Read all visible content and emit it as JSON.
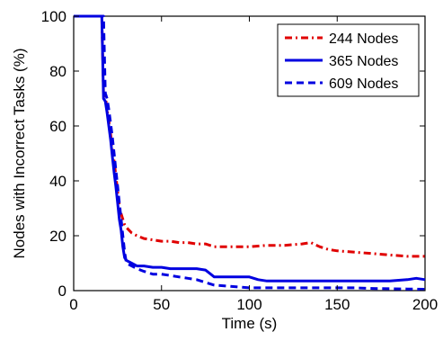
{
  "chart_data": {
    "type": "line",
    "xlabel": "Time (s)",
    "ylabel": "Nodes with Incorrect Tasks (%)",
    "xlim": [
      0,
      200
    ],
    "ylim": [
      0,
      100
    ],
    "xticks": [
      0,
      50,
      100,
      150,
      200
    ],
    "yticks": [
      0,
      20,
      40,
      60,
      80,
      100
    ],
    "grid": false,
    "legend_position": "top-right",
    "series": [
      {
        "name": "244 Nodes",
        "color": "#e00000",
        "style": "dashdot",
        "x": [
          0,
          16,
          17,
          18,
          19,
          20,
          21,
          22,
          23,
          24,
          25,
          26,
          27,
          28,
          29,
          30,
          33,
          36,
          40,
          45,
          50,
          55,
          60,
          65,
          70,
          75,
          80,
          90,
          100,
          110,
          120,
          130,
          135,
          140,
          145,
          150,
          160,
          170,
          180,
          190,
          200
        ],
        "y": [
          100,
          100,
          72,
          71,
          66,
          62,
          57,
          52,
          47,
          42,
          36,
          31,
          28,
          26,
          24,
          23,
          21,
          20,
          19,
          18.5,
          18,
          18,
          17.5,
          17.5,
          17,
          17,
          16,
          16,
          16,
          16.5,
          16.5,
          17,
          17.5,
          16,
          15,
          14.5,
          14,
          13.5,
          13,
          12.5,
          12.5
        ]
      },
      {
        "name": "365 Nodes",
        "color": "#0000e0",
        "style": "solid",
        "x": [
          0,
          16,
          17,
          18,
          19,
          20,
          21,
          22,
          23,
          24,
          25,
          26,
          27,
          28,
          29,
          30,
          33,
          36,
          40,
          45,
          50,
          55,
          60,
          65,
          70,
          75,
          78,
          80,
          90,
          100,
          105,
          110,
          120,
          130,
          140,
          150,
          160,
          170,
          180,
          190,
          195,
          200
        ],
        "y": [
          100,
          100,
          70,
          69,
          65,
          60,
          55,
          49,
          43,
          38,
          32,
          26,
          22,
          16,
          12,
          11,
          10,
          9,
          9,
          8.5,
          8.5,
          8,
          8,
          8,
          8,
          7.5,
          6,
          5,
          5,
          5,
          4,
          3.5,
          3.5,
          3.5,
          3.5,
          3.5,
          3.5,
          3.5,
          3.5,
          4,
          4.5,
          4
        ]
      },
      {
        "name": "609 Nodes",
        "color": "#0000e0",
        "style": "dashed",
        "x": [
          0,
          17,
          18,
          19,
          20,
          21,
          22,
          23,
          24,
          25,
          26,
          27,
          28,
          29,
          30,
          33,
          36,
          40,
          45,
          50,
          55,
          60,
          65,
          70,
          75,
          80,
          90,
          100,
          110,
          120,
          130,
          140,
          150,
          160,
          170,
          180,
          190,
          200
        ],
        "y": [
          100,
          100,
          72,
          70,
          66,
          61,
          56,
          50,
          44,
          38,
          32,
          26,
          20,
          14,
          10,
          9,
          8,
          7,
          6,
          6,
          5.5,
          5,
          4.5,
          4,
          3,
          2,
          1.5,
          1,
          1,
          1,
          1,
          1,
          1,
          1,
          0.8,
          0.7,
          0.6,
          0.5
        ]
      }
    ]
  }
}
